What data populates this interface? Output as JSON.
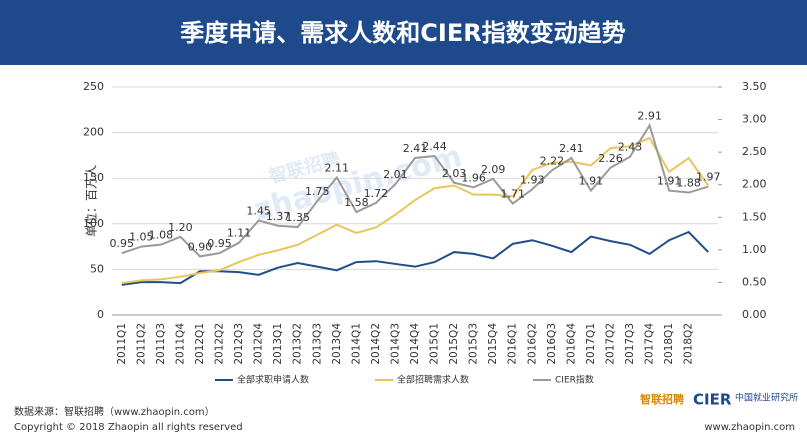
{
  "header": {
    "title": "季度申请、需求人数和CIER指数变动趋势"
  },
  "chart_data": {
    "type": "line",
    "categories": [
      "2011Q1",
      "2011Q2",
      "2011Q3",
      "2011Q4",
      "2012Q1",
      "2012Q2",
      "2012Q3",
      "2012Q4",
      "2013Q1",
      "2013Q2",
      "2013Q3",
      "2013Q4",
      "2014Q1",
      "2014Q2",
      "2014Q3",
      "2014Q4",
      "2015Q1",
      "2015Q2",
      "2015Q3",
      "2015Q4",
      "2016Q1",
      "2016Q2",
      "2016Q3",
      "2016Q4",
      "2017Q1",
      "2017Q2",
      "2017Q3",
      "2017Q4",
      "2018Q1",
      "2018Q2",
      null
    ],
    "ylabel": "单位：百万人",
    "ylim": [
      0,
      250
    ],
    "yticks": [
      0,
      50,
      100,
      150,
      200,
      250
    ],
    "y2lim": [
      0,
      3.5
    ],
    "y2ticks": [
      {
        "value": 0,
        "label": "0.00"
      },
      {
        "value": 0.5,
        "label": "0.50"
      },
      {
        "value": 1,
        "label": "1.00"
      },
      {
        "value": 1.5,
        "label": "1.50"
      },
      {
        "value": 2,
        "label": "2.00"
      },
      {
        "value": 2.5,
        "label": "2.50"
      },
      {
        "value": 3,
        "label": "3.00"
      },
      {
        "value": 3.5,
        "label": "3.50"
      }
    ],
    "grid": true,
    "legend": "bottom",
    "series": [
      {
        "name": "全部求职申请人数",
        "color": "#1f4e8c",
        "values": [
          33,
          36,
          36,
          35,
          48,
          48,
          47,
          44,
          52,
          57,
          53,
          49,
          58,
          59,
          56,
          53,
          58,
          69,
          67,
          62,
          78,
          82,
          76,
          69,
          86,
          81,
          77,
          67,
          82,
          91,
          69
        ]
      },
      {
        "name": "全部招聘需求人数",
        "color": "#e8c65a",
        "values": [
          35,
          38,
          39,
          42,
          46,
          49,
          58,
          66,
          71,
          77,
          88,
          99,
          90,
          96,
          110,
          126,
          139,
          142,
          132,
          132,
          130,
          159,
          167,
          168,
          164,
          183,
          185,
          194,
          157,
          172,
          142
        ]
      },
      {
        "name": "CIER指数",
        "color": "#9a9a9a",
        "axis": "y2",
        "values": [
          0.95,
          1.05,
          1.08,
          1.2,
          0.9,
          0.95,
          1.11,
          1.45,
          1.37,
          1.35,
          1.75,
          2.11,
          1.58,
          1.72,
          2.01,
          2.41,
          2.44,
          2.03,
          1.96,
          2.09,
          1.71,
          1.93,
          2.22,
          2.41,
          1.91,
          2.26,
          2.43,
          2.91,
          1.91,
          1.88,
          1.97
        ],
        "value_labels": [
          "0.95",
          "1.05",
          "1.08",
          "1.20",
          "0.90",
          "0.95",
          "1.11",
          "1.45",
          "1.37",
          "1.35",
          "1.75",
          "2.11",
          "1.58",
          "1.72",
          "2.01",
          "2.41",
          "2.44",
          "2.03",
          "1.96",
          "2.09",
          "1.71",
          "1.93",
          "2.22",
          "2.41",
          "1.91",
          "2.26",
          "2.43",
          "2.91",
          "1.91",
          "1.88",
          "1.97"
        ]
      }
    ]
  },
  "watermark": {
    "cn": "智联招聘",
    "en": "zhaopin.com"
  },
  "footer": {
    "source": "数据来源：智联招聘（www.zhaopin.com）",
    "copyright": "Copyright © 2018 Zhaopin all rights reserved",
    "url": "www.zhaopin.com",
    "logo1": "智联招聘",
    "logo2": "CIER",
    "logo3": "中国就业研究所"
  }
}
